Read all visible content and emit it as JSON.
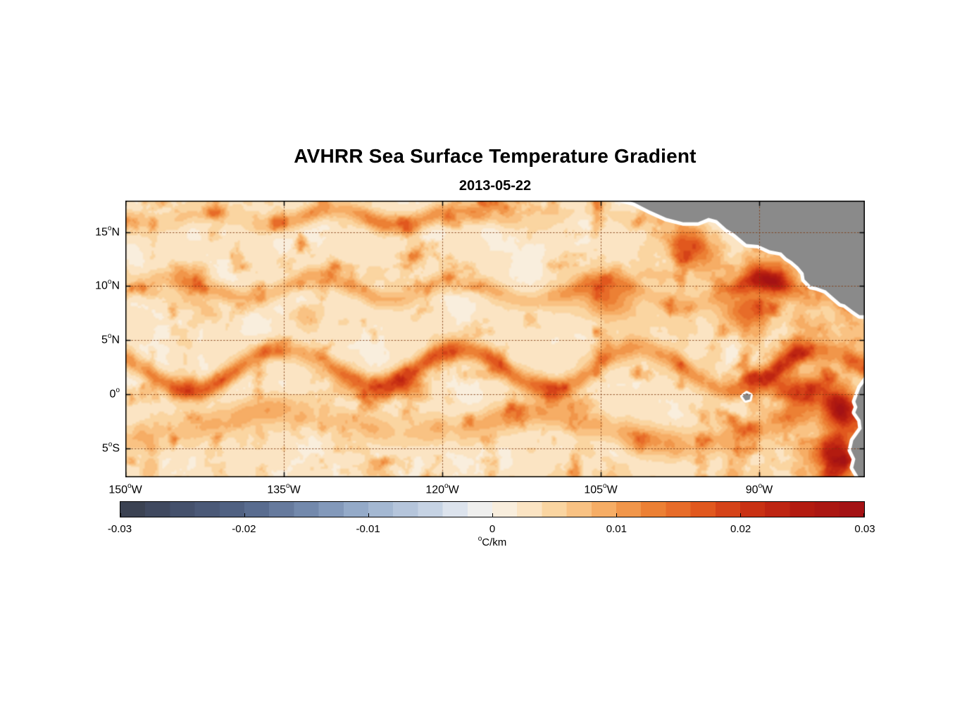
{
  "chart_data": {
    "type": "heatmap",
    "title": "AVHRR Sea Surface Temperature Gradient",
    "subtitle": "2013-05-22",
    "degree_symbol": "o",
    "lon_range": [
      -150,
      -80
    ],
    "lat_range": [
      -7.7,
      17.9
    ],
    "grid": true,
    "x_ticks": [
      {
        "value": -150,
        "label_num": "150",
        "hemisphere": "W"
      },
      {
        "value": -135,
        "label_num": "135",
        "hemisphere": "W"
      },
      {
        "value": -120,
        "label_num": "120",
        "hemisphere": "W"
      },
      {
        "value": -105,
        "label_num": "105",
        "hemisphere": "W"
      },
      {
        "value": -90,
        "label_num": "90",
        "hemisphere": "W"
      }
    ],
    "y_ticks": [
      {
        "value": 15,
        "label_num": "15",
        "hemisphere": "N"
      },
      {
        "value": 10,
        "label_num": "10",
        "hemisphere": "N"
      },
      {
        "value": 5,
        "label_num": "5",
        "hemisphere": "N"
      },
      {
        "value": 0,
        "label_num": "0",
        "hemisphere": ""
      },
      {
        "value": -5,
        "label_num": "5",
        "hemisphere": "S"
      }
    ],
    "colorbar": {
      "min": -0.03,
      "max": 0.03,
      "steps": 30,
      "tick_labels": [
        "-0.03",
        "-0.02",
        "-0.01",
        "0",
        "0.01",
        "0.02",
        "0.03"
      ],
      "unit_text": "C/km",
      "stops": [
        {
          "t": 0.0,
          "c": "#383E4C"
        },
        {
          "t": 0.08,
          "c": "#44506B"
        },
        {
          "t": 0.17,
          "c": "#546689"
        },
        {
          "t": 0.25,
          "c": "#7389AC"
        },
        {
          "t": 0.33,
          "c": "#9AB0CD"
        },
        {
          "t": 0.42,
          "c": "#C8D4E5"
        },
        {
          "t": 0.47,
          "c": "#E9EDF3"
        },
        {
          "t": 0.5,
          "c": "#F7F2E8"
        },
        {
          "t": 0.54,
          "c": "#FBE8CD"
        },
        {
          "t": 0.58,
          "c": "#FAD7A4"
        },
        {
          "t": 0.63,
          "c": "#F8BB77"
        },
        {
          "t": 0.67,
          "c": "#F39F53"
        },
        {
          "t": 0.72,
          "c": "#EC7E32"
        },
        {
          "t": 0.78,
          "c": "#E25A1F"
        },
        {
          "t": 0.84,
          "c": "#CD3414"
        },
        {
          "t": 0.91,
          "c": "#B41C10"
        },
        {
          "t": 1.0,
          "c": "#A01015"
        }
      ]
    },
    "colors": {
      "land": "#8A8A8A",
      "coast_halo": "#FFFFFF",
      "grid": "rgba(125,55,15,0.85)",
      "axis": "#000000",
      "background": "#FFFFFF"
    },
    "features": [
      "Strong meandering frontal band along 1-4N (tropical instability waves) spanning the basin",
      "Secondary frontal band near 2-4S in the west and central basin",
      "Patchy fronts near 9-10N",
      "Strong band near 16-17N between about 133W and 118W",
      "Intense gradients along the Ecuador-Peru coast and around the Galapagos Islands",
      "Gray land mask: Central America upper right, Ecuador-Peru lower right, Galapagos Islands near 91W,0"
    ],
    "field": {
      "background": 0.0025,
      "background_noise": 0.0025,
      "filament_amp": 0.015,
      "blob_amp": 0.01,
      "coastal_amp": 0.014,
      "bands": [
        {
          "lat_center": 2.3,
          "meander_amp": 1.7,
          "wavelength_deg": 17,
          "phase": 1.2,
          "width_deg": 1.0,
          "peak": 0.023,
          "seed": 5
        },
        {
          "lat_center": -2.9,
          "meander_amp": 1.3,
          "wavelength_deg": 26,
          "phase": 3.1,
          "width_deg": 1.4,
          "peak": 0.012,
          "seed": 11
        },
        {
          "lat_center": 9.6,
          "meander_amp": 1.1,
          "wavelength_deg": 14,
          "phase": 4.2,
          "width_deg": 0.9,
          "peak": 0.011,
          "seed": 17
        },
        {
          "lat_center": 16.3,
          "meander_amp": 0.7,
          "wavelength_deg": 12,
          "phase": 0.6,
          "width_deg": 0.9,
          "peak": 0.017,
          "seed": 23,
          "lon_center": -125,
          "lon_spread": 14
        }
      ],
      "hotspots": [
        {
          "lon": -96.5,
          "lat": 13.8,
          "sx": 2.2,
          "sy": 1.5,
          "amp": 0.012
        },
        {
          "lon": -88.8,
          "lat": 10.6,
          "sx": 2.6,
          "sy": 1.8,
          "amp": 0.014
        },
        {
          "lon": -86.0,
          "lat": 0.5,
          "sx": 3.0,
          "sy": 1.3,
          "amp": 0.014
        },
        {
          "lon": -82.2,
          "lat": -1.2,
          "sx": 1.6,
          "sy": 1.6,
          "amp": 0.018
        },
        {
          "lon": -82.6,
          "lat": -5.8,
          "sx": 1.8,
          "sy": 2.6,
          "amp": 0.02
        },
        {
          "lon": -91.5,
          "lat": 7.5,
          "sx": 2.5,
          "sy": 1.6,
          "amp": 0.01
        },
        {
          "lon": -104.5,
          "lat": 9.0,
          "sx": 3.0,
          "sy": 2.0,
          "amp": 0.01
        }
      ]
    },
    "land": {
      "polygons": [
        {
          "name": "central-america",
          "halo": 10,
          "points": [
            [
              -103.6,
              18.8
            ],
            [
              -103.2,
              18.1
            ],
            [
              -101.8,
              17.7
            ],
            [
              -100.4,
              17.0
            ],
            [
              -98.8,
              16.3
            ],
            [
              -97.2,
              15.9
            ],
            [
              -95.8,
              15.9
            ],
            [
              -94.8,
              16.3
            ],
            [
              -94.0,
              16.1
            ],
            [
              -93.1,
              15.3
            ],
            [
              -92.3,
              14.8
            ],
            [
              -91.2,
              13.9
            ],
            [
              -90.1,
              13.8
            ],
            [
              -89.0,
              13.3
            ],
            [
              -87.9,
              13.1
            ],
            [
              -87.4,
              12.6
            ],
            [
              -86.9,
              12.3
            ],
            [
              -86.3,
              11.8
            ],
            [
              -85.8,
              11.2
            ],
            [
              -85.7,
              10.6
            ],
            [
              -85.1,
              10.0
            ],
            [
              -84.6,
              9.9
            ],
            [
              -83.7,
              9.6
            ],
            [
              -83.0,
              9.0
            ],
            [
              -82.3,
              8.4
            ],
            [
              -81.9,
              8.3
            ],
            [
              -81.1,
              7.7
            ],
            [
              -80.5,
              7.3
            ],
            [
              -79.6,
              7.3
            ],
            [
              -79.0,
              8.0
            ],
            [
              -79.0,
              19.0
            ],
            [
              -103.6,
              19.0
            ]
          ]
        },
        {
          "name": "south-america",
          "halo": 10,
          "points": [
            [
              -79.0,
              1.6
            ],
            [
              -79.8,
              1.4
            ],
            [
              -80.1,
              1.0
            ],
            [
              -80.4,
              0.6
            ],
            [
              -80.6,
              0.1
            ],
            [
              -80.9,
              -0.7
            ],
            [
              -80.7,
              -1.2
            ],
            [
              -80.9,
              -1.7
            ],
            [
              -80.4,
              -2.4
            ],
            [
              -80.3,
              -3.2
            ],
            [
              -81.1,
              -4.3
            ],
            [
              -81.3,
              -5.2
            ],
            [
              -80.9,
              -6.0
            ],
            [
              -81.1,
              -6.8
            ],
            [
              -80.5,
              -7.8
            ],
            [
              -80.2,
              -8.6
            ],
            [
              -79.0,
              -8.6
            ]
          ]
        },
        {
          "name": "galapagos-islands",
          "halo": 6,
          "points": [
            [
              -91.6,
              -0.2
            ],
            [
              -91.2,
              0.1
            ],
            [
              -90.8,
              -0.1
            ],
            [
              -90.9,
              -0.5
            ],
            [
              -91.3,
              -0.6
            ]
          ]
        }
      ]
    }
  }
}
